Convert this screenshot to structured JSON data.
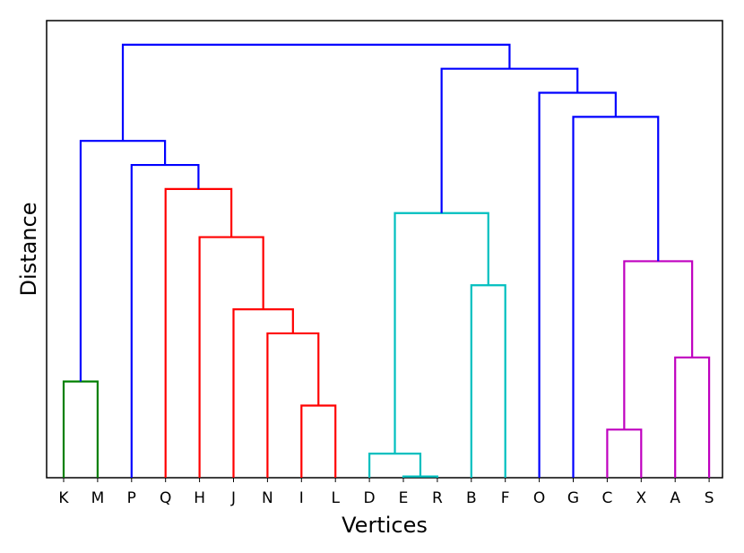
{
  "chart_data": {
    "type": "dendrogram",
    "xlabel": "Vertices",
    "ylabel": "Distance",
    "leaves": [
      "K",
      "M",
      "P",
      "Q",
      "H",
      "J",
      "N",
      "I",
      "L",
      "D",
      "E",
      "R",
      "B",
      "F",
      "O",
      "G",
      "C",
      "X",
      "A",
      "S"
    ],
    "ylim": [
      0,
      19
    ],
    "grid": false,
    "y_ticks_shown": false,
    "colors": {
      "above_threshold": "#0000ff",
      "clusters": [
        "#008000",
        "#ff0000",
        "#00bfbf",
        "#bf00bf"
      ]
    },
    "merges": [
      {
        "left": "E",
        "right": "R",
        "height": 0.05,
        "color": "#00bfbf"
      },
      {
        "left": "D",
        "right": "E+R",
        "height": 1.0,
        "color": "#00bfbf"
      },
      {
        "left": "C",
        "right": "X",
        "height": 2.0,
        "color": "#bf00bf"
      },
      {
        "left": "I",
        "right": "L",
        "height": 3.0,
        "color": "#ff0000"
      },
      {
        "left": "A",
        "right": "S",
        "height": 5.0,
        "color": "#bf00bf"
      },
      {
        "left": "K",
        "right": "M",
        "height": 4.0,
        "color": "#008000"
      },
      {
        "left": "N",
        "right": "I+L",
        "height": 6.0,
        "color": "#ff0000"
      },
      {
        "left": "J",
        "right": "N+I+L",
        "height": 7.0,
        "color": "#ff0000"
      },
      {
        "left": "B",
        "right": "F",
        "height": 8.0,
        "color": "#00bfbf"
      },
      {
        "left": "H",
        "right": "J+N+I+L",
        "height": 10.0,
        "color": "#ff0000"
      },
      {
        "left": "C+X",
        "right": "A+S",
        "height": 9.0,
        "color": "#bf00bf"
      },
      {
        "left": "D+E+R",
        "right": "B+F",
        "height": 11.0,
        "color": "#00bfbf"
      },
      {
        "left": "Q",
        "right": "H+J+N+I+L",
        "height": 12.0,
        "color": "#ff0000"
      },
      {
        "left": "P",
        "right": "Q+H+J+N+I+L",
        "height": 13.0,
        "color": "#0000ff"
      },
      {
        "left": "G",
        "right": "C+X+A+S",
        "height": 15.0,
        "color": "#0000ff"
      },
      {
        "left": "K+M",
        "right": "P+Q+H+J+N+I+L",
        "height": 14.0,
        "color": "#0000ff"
      },
      {
        "left": "O",
        "right": "G+C+X+A+S",
        "height": 16.0,
        "color": "#0000ff"
      },
      {
        "left": "D+E+R+B+F",
        "right": "O+G+C+X+A+S",
        "height": 17.0,
        "color": "#0000ff"
      },
      {
        "left": "K+M+P+Q+H+J+N+I+L",
        "right": "D+E+R+B+F+O+G+C+X+A+S",
        "height": 18.0,
        "color": "#0000ff"
      }
    ]
  }
}
